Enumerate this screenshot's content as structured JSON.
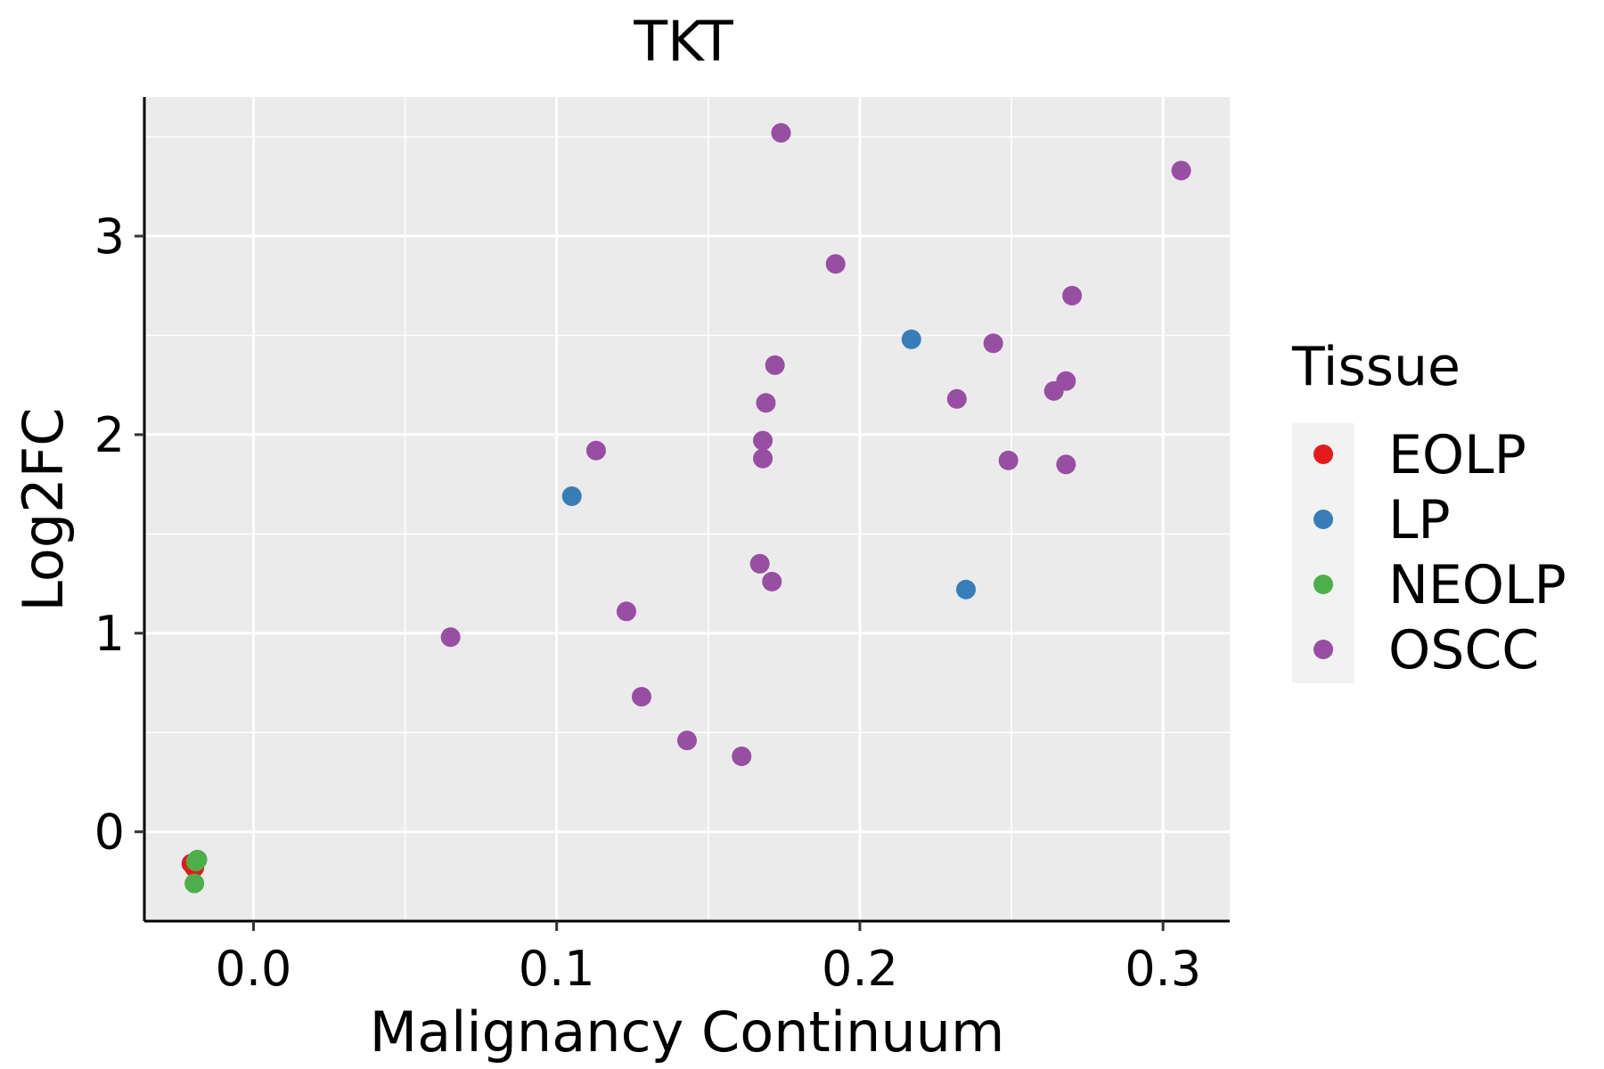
{
  "chart_data": {
    "type": "scatter",
    "title": "TKT",
    "xlabel": "Malignancy Continuum",
    "ylabel": "Log2FC",
    "xlim": [
      -0.036,
      0.322
    ],
    "ylim": [
      -0.45,
      3.7
    ],
    "x_ticks": [
      0.0,
      0.1,
      0.2,
      0.3
    ],
    "x_tick_labels": [
      "0.0",
      "0.1",
      "0.2",
      "0.3"
    ],
    "y_ticks": [
      0,
      1,
      2,
      3
    ],
    "y_tick_labels": [
      "0",
      "1",
      "2",
      "3"
    ],
    "grid": true,
    "legend": {
      "title": "Tissue",
      "position": "right"
    },
    "series": [
      {
        "name": "EOLP",
        "color": "#E41A1C",
        "points": [
          {
            "x": -0.0205,
            "y": -0.16
          },
          {
            "x": -0.0195,
            "y": -0.18
          }
        ]
      },
      {
        "name": "LP",
        "color": "#377EB8",
        "points": [
          {
            "x": 0.105,
            "y": 1.69
          },
          {
            "x": 0.217,
            "y": 2.48
          },
          {
            "x": 0.235,
            "y": 1.22
          }
        ]
      },
      {
        "name": "NEOLP",
        "color": "#4DAF4A",
        "points": [
          {
            "x": -0.0195,
            "y": -0.26
          },
          {
            "x": -0.019,
            "y": -0.15
          },
          {
            "x": -0.0185,
            "y": -0.14
          }
        ]
      },
      {
        "name": "OSCC",
        "color": "#984EA3",
        "points": [
          {
            "x": 0.065,
            "y": 0.98
          },
          {
            "x": 0.113,
            "y": 1.92
          },
          {
            "x": 0.123,
            "y": 1.11
          },
          {
            "x": 0.128,
            "y": 0.68
          },
          {
            "x": 0.143,
            "y": 0.46
          },
          {
            "x": 0.161,
            "y": 0.38
          },
          {
            "x": 0.167,
            "y": 1.35
          },
          {
            "x": 0.168,
            "y": 1.88
          },
          {
            "x": 0.168,
            "y": 1.97
          },
          {
            "x": 0.169,
            "y": 2.16
          },
          {
            "x": 0.171,
            "y": 1.26
          },
          {
            "x": 0.172,
            "y": 2.35
          },
          {
            "x": 0.174,
            "y": 3.52
          },
          {
            "x": 0.192,
            "y": 2.86
          },
          {
            "x": 0.232,
            "y": 2.18
          },
          {
            "x": 0.244,
            "y": 2.46
          },
          {
            "x": 0.249,
            "y": 1.87
          },
          {
            "x": 0.264,
            "y": 2.22
          },
          {
            "x": 0.268,
            "y": 2.27
          },
          {
            "x": 0.268,
            "y": 1.85
          },
          {
            "x": 0.27,
            "y": 2.7
          },
          {
            "x": 0.306,
            "y": 3.33
          }
        ]
      }
    ]
  }
}
